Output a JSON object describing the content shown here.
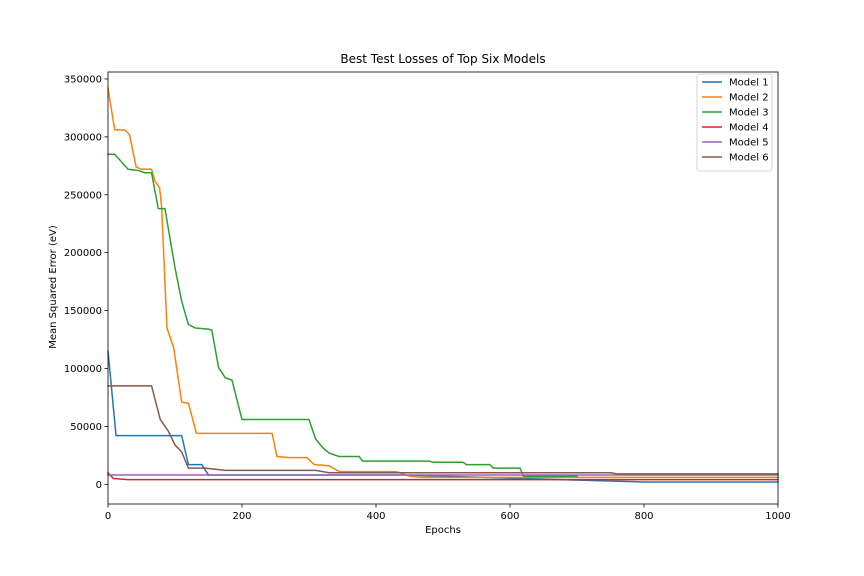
{
  "chart_data": {
    "type": "line",
    "title": "Best Test Losses of Top Six Models",
    "xlabel": "Epochs",
    "ylabel": "Mean Squared Error (eV)",
    "xlim": [
      0,
      1000
    ],
    "ylim": [
      -17000,
      356000
    ],
    "xticks": [
      0,
      200,
      400,
      600,
      800,
      1000
    ],
    "yticks": [
      0,
      50000,
      100000,
      150000,
      200000,
      250000,
      300000,
      350000
    ],
    "xtick_labels": [
      "0",
      "200",
      "400",
      "600",
      "800",
      "1000"
    ],
    "ytick_labels": [
      "0",
      "50000",
      "100000",
      "150000",
      "200000",
      "250000",
      "300000",
      "350000"
    ],
    "grid": false,
    "legend_position": "top-right",
    "series": [
      {
        "name": "Model 1",
        "color": "#1f77b4",
        "x": [
          0,
          12,
          60,
          110,
          120,
          140,
          150,
          300,
          440,
          800,
          1000
        ],
        "y": [
          115000,
          42000,
          42000,
          42000,
          17000,
          17000,
          8000,
          8000,
          8000,
          2000,
          2000
        ]
      },
      {
        "name": "Model 2",
        "color": "#ff7f0e",
        "x": [
          0,
          10,
          25,
          32,
          42,
          50,
          65,
          70,
          77,
          80,
          88,
          98,
          110,
          120,
          132,
          245,
          252,
          270,
          297,
          308,
          330,
          345,
          430,
          450,
          470,
          600,
          1000
        ],
        "y": [
          342000,
          306000,
          306000,
          302000,
          274000,
          272000,
          272000,
          262000,
          256000,
          240000,
          135000,
          118000,
          71000,
          70000,
          44000,
          44000,
          24000,
          23000,
          23000,
          17000,
          16000,
          11000,
          11000,
          7000,
          6000,
          6000,
          6000
        ]
      },
      {
        "name": "Model 3",
        "color": "#2ca02c",
        "x": [
          0,
          10,
          30,
          45,
          55,
          65,
          75,
          85,
          100,
          110,
          120,
          130,
          150,
          155,
          165,
          175,
          185,
          200,
          300,
          310,
          320,
          330,
          345,
          375,
          380,
          480,
          485,
          530,
          535,
          570,
          575,
          615,
          620,
          700
        ],
        "y": [
          285000,
          285000,
          272000,
          271000,
          269000,
          269000,
          238000,
          238000,
          187000,
          158000,
          138000,
          135000,
          134000,
          133000,
          101000,
          92000,
          90000,
          56000,
          56000,
          39000,
          32000,
          27000,
          24000,
          24000,
          20000,
          20000,
          19000,
          19000,
          17000,
          17000,
          14000,
          14000,
          7000,
          7000
        ]
      },
      {
        "name": "Model 4",
        "color": "#d62728",
        "x": [
          0,
          8,
          30,
          600,
          1000
        ],
        "y": [
          10000,
          5000,
          4000,
          4000,
          4000
        ]
      },
      {
        "name": "Model 5",
        "color": "#9467bd",
        "x": [
          0,
          1000
        ],
        "y": [
          8000,
          8000
        ]
      },
      {
        "name": "Model 6",
        "color": "#8c564b",
        "x": [
          0,
          15,
          65,
          78,
          90,
          100,
          110,
          120,
          145,
          175,
          310,
          330,
          430,
          600,
          750,
          760,
          1000
        ],
        "y": [
          85000,
          85000,
          85000,
          56000,
          46000,
          34000,
          28000,
          14000,
          14000,
          12000,
          12000,
          10000,
          10000,
          10000,
          10000,
          9000,
          9000
        ]
      }
    ]
  }
}
